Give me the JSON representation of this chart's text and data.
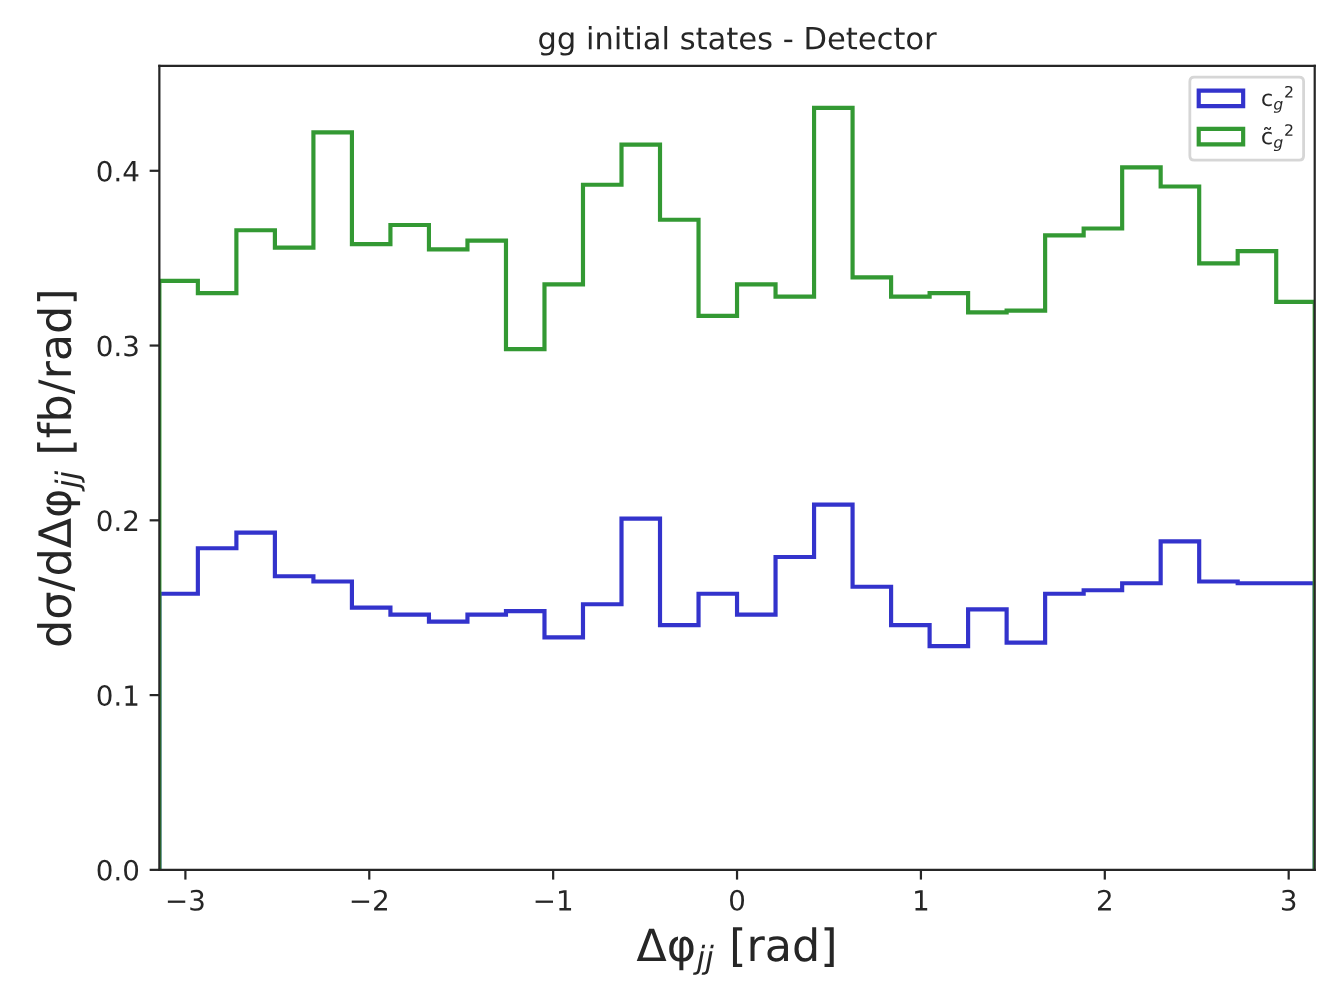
{
  "chart_data": {
    "type": "histogram",
    "title": "gg initial states - Detector",
    "xlabel": "Δφ$_{jj}$ [rad]",
    "ylabel": "dσ/dΔφ$_{jj}$ [fb/rad]",
    "bins": [
      -3.1416,
      -2.9322,
      -2.7227,
      -2.5133,
      -2.3038,
      -2.0944,
      -1.885,
      -1.6755,
      -1.4661,
      -1.2566,
      -1.0472,
      -0.8378,
      -0.6283,
      -0.4189,
      -0.2094,
      0,
      0.2094,
      0.4189,
      0.6283,
      0.8378,
      1.0472,
      1.2566,
      1.4661,
      1.6755,
      1.885,
      2.0944,
      2.3038,
      2.5133,
      2.7227,
      2.9322,
      3.1416
    ],
    "series": [
      {
        "name": "c$_{g}$$^{2}$",
        "color": "#3333cc",
        "values": [
          0.158,
          0.184,
          0.193,
          0.168,
          0.165,
          0.15,
          0.146,
          0.142,
          0.146,
          0.148,
          0.133,
          0.152,
          0.201,
          0.14,
          0.158,
          0.146,
          0.179,
          0.209,
          0.162,
          0.14,
          0.128,
          0.149,
          0.13,
          0.158,
          0.16,
          0.164,
          0.188,
          0.165,
          0.164,
          0.164
        ]
      },
      {
        "name": "c̃$_{g}$$^{2}$",
        "color": "#339933",
        "values": [
          0.337,
          0.33,
          0.366,
          0.356,
          0.422,
          0.358,
          0.369,
          0.355,
          0.36,
          0.298,
          0.335,
          0.392,
          0.415,
          0.372,
          0.317,
          0.335,
          0.328,
          0.436,
          0.339,
          0.328,
          0.33,
          0.319,
          0.32,
          0.363,
          0.367,
          0.402,
          0.391,
          0.347,
          0.354,
          0.325
        ]
      }
    ],
    "xlim": [
      -3.1416,
      3.1416
    ],
    "ylim": [
      0,
      0.46
    ],
    "xticks": [
      -3,
      -2,
      -1,
      0,
      1,
      2,
      3
    ],
    "yticks": [
      {
        "value": 0,
        "label": "0.0"
      },
      {
        "value": 0.1,
        "label": "0.1"
      },
      {
        "value": 0.2,
        "label": "0.2"
      },
      {
        "value": 0.3,
        "label": "0.3"
      },
      {
        "value": 0.4,
        "label": "0.4"
      }
    ],
    "legend": "top right",
    "grid": false
  }
}
